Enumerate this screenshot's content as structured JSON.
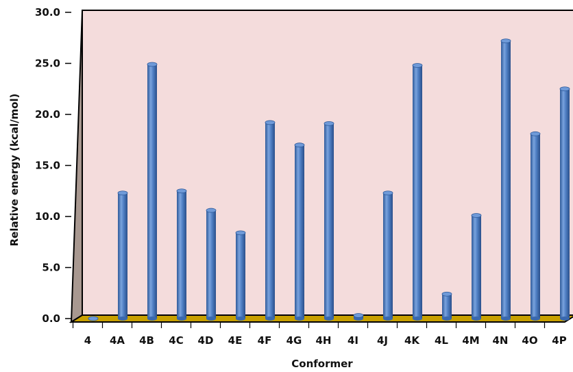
{
  "chart_data": {
    "type": "bar",
    "title": "",
    "xlabel": "Conformer",
    "ylabel": "Relative energy (kcal/mol)",
    "ylim": [
      0,
      30
    ],
    "yticks": [
      "0.0",
      "5.0",
      "10.0",
      "15.0",
      "20.0",
      "25.0",
      "30.0"
    ],
    "categories": [
      "4",
      "4A",
      "4B",
      "4C",
      "4D",
      "4E",
      "4F",
      "4G",
      "4H",
      "4I",
      "4J",
      "4K",
      "4L",
      "4M",
      "4N",
      "4O",
      "4P"
    ],
    "values": [
      0.0,
      12.3,
      24.9,
      12.5,
      10.6,
      8.4,
      19.2,
      17.0,
      19.1,
      0.3,
      12.3,
      24.8,
      2.4,
      10.1,
      27.2,
      18.1,
      22.5
    ],
    "grid": false,
    "legend": "none",
    "style": "3d-cylinder"
  },
  "colors": {
    "back_wall": "#f4dcdc",
    "side_wall": "#a89890",
    "floor": "#c8a000",
    "bar": "#4f7fc4",
    "bar_dark": "#2e5a9a",
    "bar_light": "#8fb3e6"
  }
}
